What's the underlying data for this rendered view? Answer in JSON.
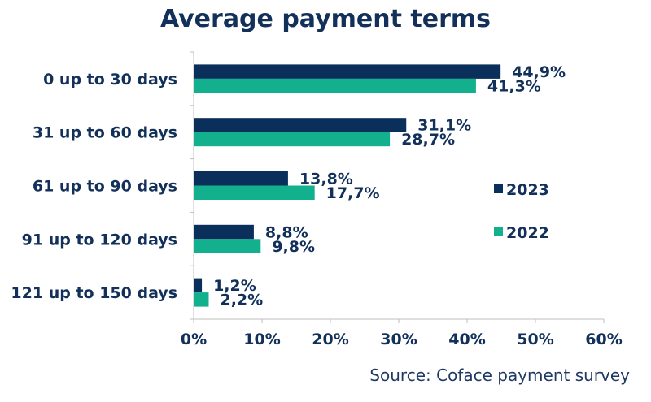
{
  "chart_data": {
    "type": "bar",
    "orientation": "horizontal",
    "title": "Average payment terms",
    "categories": [
      "0 up to 30 days",
      "31 up to 60 days",
      "61 up to 90 days",
      "91 up to 120 days",
      "121 up to 150 days"
    ],
    "series": [
      {
        "name": "2023",
        "color": "#0b2f5b",
        "values": [
          44.9,
          31.1,
          13.8,
          8.8,
          1.2
        ],
        "labels": [
          "44,9%",
          "31,1%",
          "13,8%",
          "8,8%",
          "1,2%"
        ]
      },
      {
        "name": "2022",
        "color": "#12b08c",
        "values": [
          41.3,
          28.7,
          17.7,
          9.8,
          2.2
        ],
        "labels": [
          "41,3%",
          "28,7%",
          "17,7%",
          "9,8%",
          "2,2%"
        ]
      }
    ],
    "xlim": [
      0,
      60
    ],
    "xticks": [
      0,
      10,
      20,
      30,
      40,
      50,
      60
    ],
    "xtick_labels": [
      "0%",
      "10%",
      "20%",
      "30%",
      "40%",
      "50%",
      "60%"
    ],
    "grid": false,
    "legend_position": "right"
  },
  "source": "Source: Coface payment survey"
}
